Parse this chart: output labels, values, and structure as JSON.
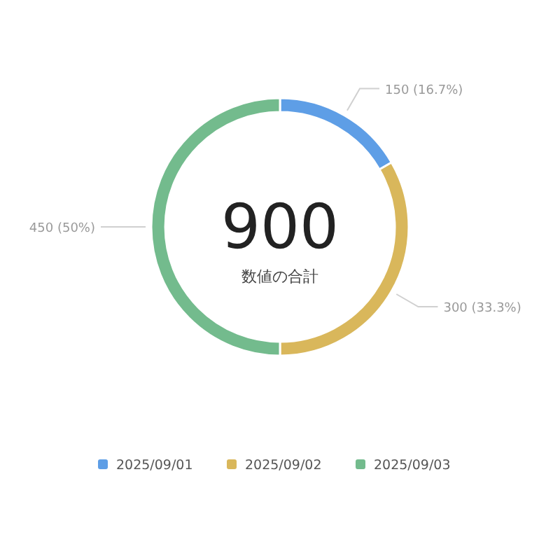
{
  "chart_data": {
    "type": "donut",
    "categories": [
      "2025/09/01",
      "2025/09/02",
      "2025/09/03"
    ],
    "values": [
      150,
      300,
      450
    ],
    "colors": [
      "#5e9ee6",
      "#d9b75b",
      "#73bb8d"
    ],
    "value_labels": [
      "150 (16.7%)",
      "300 (33.3%)",
      "450 (50%)"
    ],
    "annotations": [
      "900",
      "数値の合計"
    ],
    "legend": "bottom"
  }
}
